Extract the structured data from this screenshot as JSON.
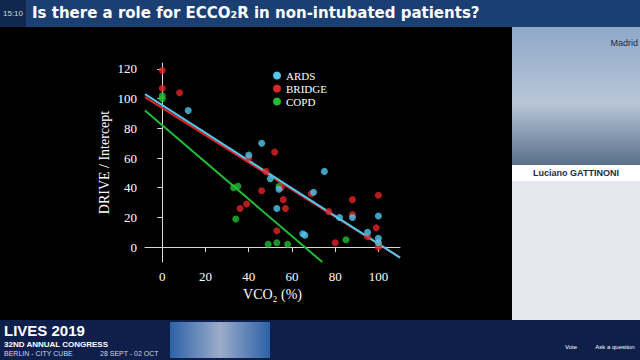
{
  "slide": {
    "clock": "15:10",
    "title": "Is there a role for ECCO₂R in non-intubated patients?",
    "location": "Madrid",
    "speaker": "Luciano GATTINONI",
    "congress": {
      "name": "LIVES 2019",
      "edition": "32ND ANNUAL CONGRESS",
      "venue": "BERLIN - CITY CUBE",
      "dates": "28 SEPT - 02 OCT"
    },
    "buttons": [
      "Vote",
      "Ask a question"
    ]
  },
  "chart_data": {
    "type": "scatter",
    "xlabel": "VCO₂ (%)",
    "ylabel": "DRIVE / Intercept",
    "xlim": [
      -8,
      110
    ],
    "ylim": [
      -10,
      124
    ],
    "xticks": [
      0,
      20,
      40,
      60,
      80,
      100
    ],
    "yticks": [
      0,
      20,
      40,
      60,
      80,
      100,
      120
    ],
    "grid": false,
    "legend": "top-right",
    "series": [
      {
        "name": "ARDS",
        "color": "#4fc8ec",
        "marker": "circle",
        "x": [
          12,
          40,
          46,
          50,
          53,
          54,
          65,
          66,
          70,
          75,
          82,
          88,
          95,
          100,
          100,
          100
        ],
        "values": [
          92,
          62,
          70,
          46,
          26,
          39,
          9,
          8,
          37,
          51,
          20,
          20,
          10,
          21,
          6,
          3
        ],
        "trend": {
          "x": [
            -8,
            110
          ],
          "values": [
            103,
            -7
          ]
        }
      },
      {
        "name": "BRIDGE",
        "color": "#e02424",
        "marker": "circle",
        "x": [
          0,
          0,
          8,
          36,
          39,
          40,
          46,
          48,
          52,
          53,
          55,
          56,
          57,
          69,
          77,
          80,
          88,
          88,
          95,
          99,
          100,
          100,
          100
        ],
        "values": [
          119,
          107,
          104,
          26,
          29,
          60,
          38,
          51,
          64,
          11,
          40,
          32,
          26,
          36,
          24,
          3,
          32,
          22,
          7,
          13,
          35,
          3,
          0
        ],
        "trend": {
          "x": [
            -8,
            110
          ],
          "values": [
            101,
            -7
          ]
        }
      },
      {
        "name": "COPD",
        "color": "#22bb33",
        "marker": "circle",
        "x": [
          0,
          0,
          33,
          35,
          34,
          49,
          53,
          54,
          58,
          85
        ],
        "values": [
          102,
          100,
          40,
          41,
          19,
          2,
          3,
          41,
          2,
          5
        ],
        "trend": {
          "x": [
            -8,
            74
          ],
          "values": [
            92,
            -10
          ]
        }
      }
    ]
  }
}
